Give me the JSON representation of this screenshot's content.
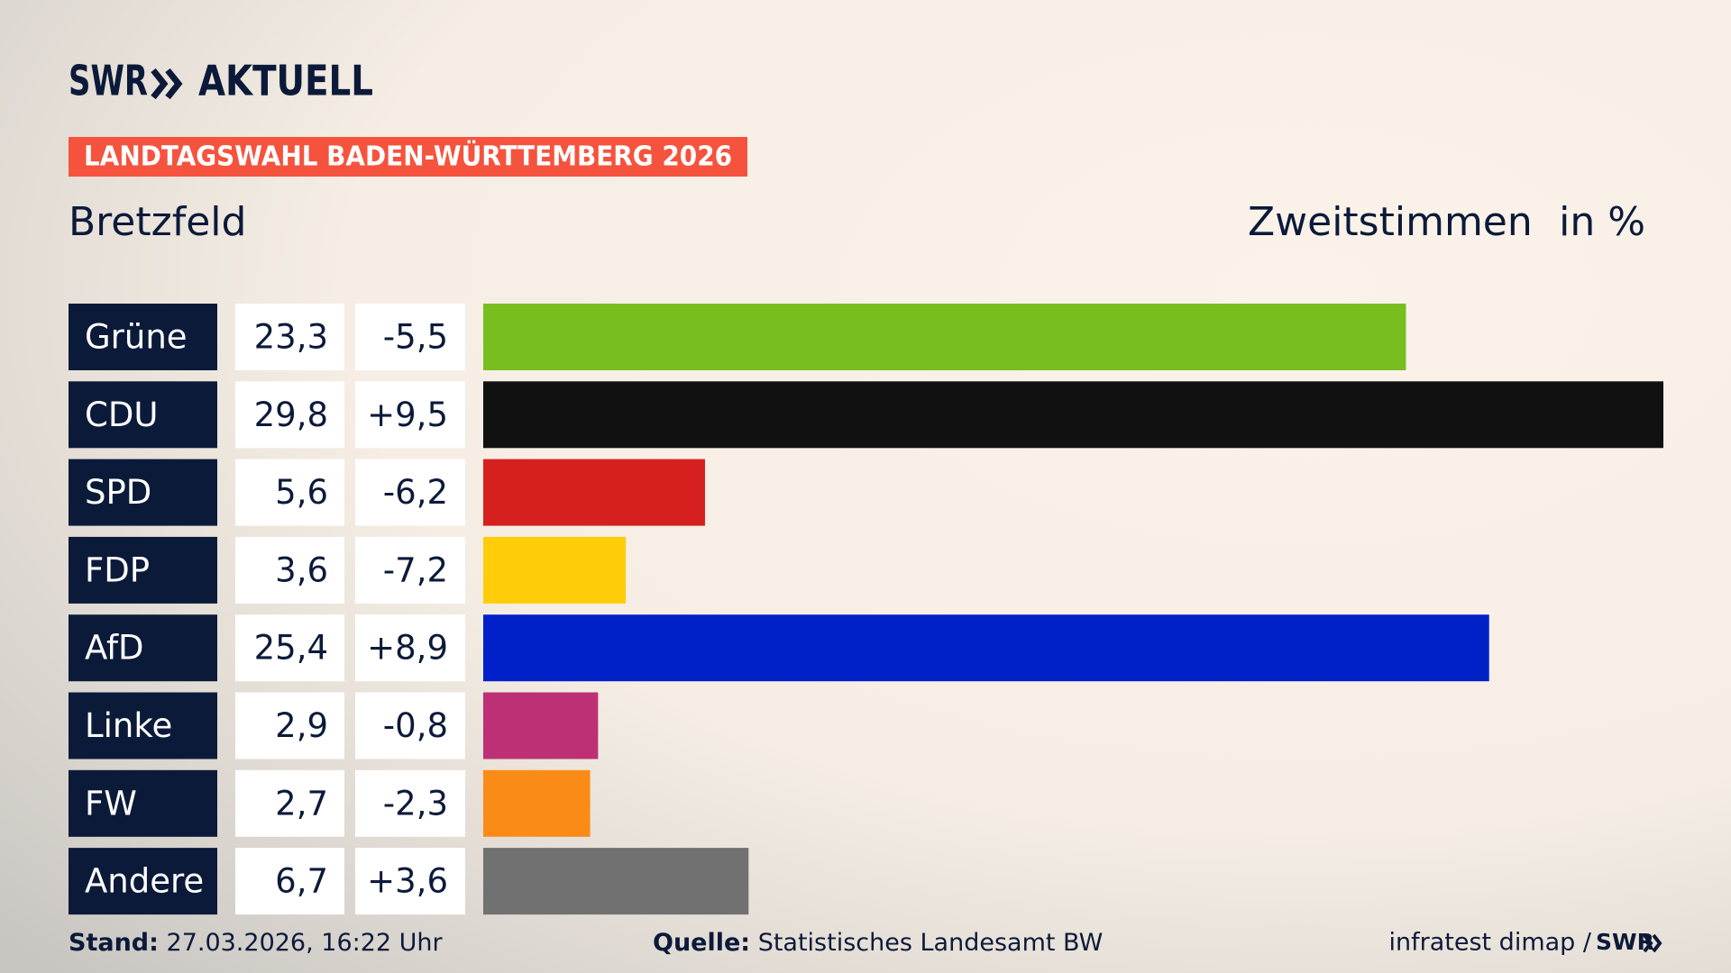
{
  "chart_data": {
    "type": "bar",
    "brand": "SWR",
    "brand_title": "AKTUELL",
    "banner": "LANDTAGSWAHL BADEN-WÜRTTEMBERG 2026",
    "title": "Bretzfeld",
    "subtitle": "Zweitstimmen",
    "unit": "in %",
    "categories": [
      "Grüne",
      "CDU",
      "SPD",
      "FDP",
      "AfD",
      "Linke",
      "FW",
      "Andere"
    ],
    "values": [
      23.3,
      29.8,
      5.6,
      3.6,
      25.4,
      2.9,
      2.7,
      6.7
    ],
    "value_labels": [
      "23,3",
      "29,8",
      "5,6",
      "3,6",
      "25,4",
      "2,9",
      "2,7",
      "6,7"
    ],
    "changes": [
      "-5,5",
      "+9,5",
      "-6,2",
      "-7,2",
      "+8,9",
      "-0,8",
      "-2,3",
      "+3,6"
    ],
    "colors": [
      "#78be1e",
      "#111111",
      "#d5201f",
      "#ffcc0a",
      "#0021c8",
      "#bd3075",
      "#fb8b17",
      "#717171"
    ],
    "footer": {
      "stand_label": "Stand:",
      "stand": "27.03.2026, 16:22 Uhr",
      "source_label": "Quelle:",
      "source": "Statistisches Landesamt BW",
      "credit": "infratest dimap /",
      "credit_brand": "SWR"
    }
  }
}
